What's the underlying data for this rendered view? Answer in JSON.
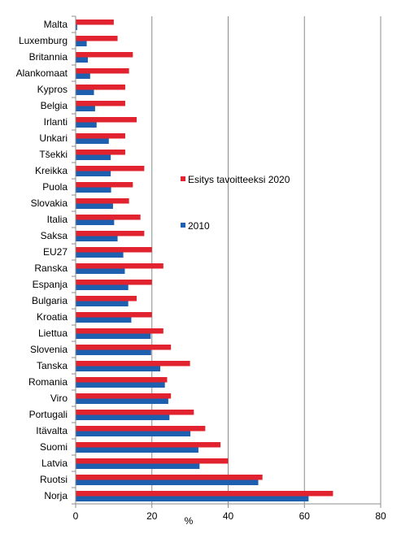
{
  "chart_data": {
    "type": "bar",
    "orientation": "horizontal",
    "categories": [
      "Malta",
      "Luxemburg",
      "Britannia",
      "Alankomaat",
      "Kypros",
      "Belgia",
      "Irlanti",
      "Unkari",
      "Tšekki",
      "Kreikka",
      "Puola",
      "Slovakia",
      "Italia",
      "Saksa",
      "EU27",
      "Ranska",
      "Espanja",
      "Bulgaria",
      "Kroatia",
      "Liettua",
      "Slovenia",
      "Tanska",
      "Romania",
      "Viro",
      "Portugali",
      "Itävalta",
      "Suomi",
      "Latvia",
      "Ruotsi",
      "Norja"
    ],
    "series": [
      {
        "name": "Esitys tavoitteeksi 2020",
        "color": "#e0232e",
        "values": [
          10,
          11,
          15,
          14,
          13,
          13,
          16,
          13,
          13,
          18,
          15,
          14,
          17,
          18,
          20,
          23,
          20,
          16,
          20,
          23,
          25,
          30,
          24,
          25,
          31,
          34,
          38,
          40,
          49,
          67.5
        ]
      },
      {
        "name": "2010",
        "color": "#1f5fb0",
        "values": [
          0.4,
          2.9,
          3.2,
          3.8,
          4.8,
          5.1,
          5.5,
          8.7,
          9.2,
          9.2,
          9.3,
          9.8,
          10.1,
          11,
          12.5,
          12.9,
          13.8,
          13.8,
          14.6,
          19.7,
          19.8,
          22.2,
          23.4,
          24.3,
          24.6,
          30.1,
          32.2,
          32.5,
          47.9,
          61.1
        ]
      }
    ],
    "xlabel": "%",
    "ylabel": "",
    "xlim": [
      0,
      80
    ],
    "xticks": [
      0,
      20,
      40,
      60,
      80
    ],
    "grid": true,
    "legend_position": "inside-right"
  }
}
